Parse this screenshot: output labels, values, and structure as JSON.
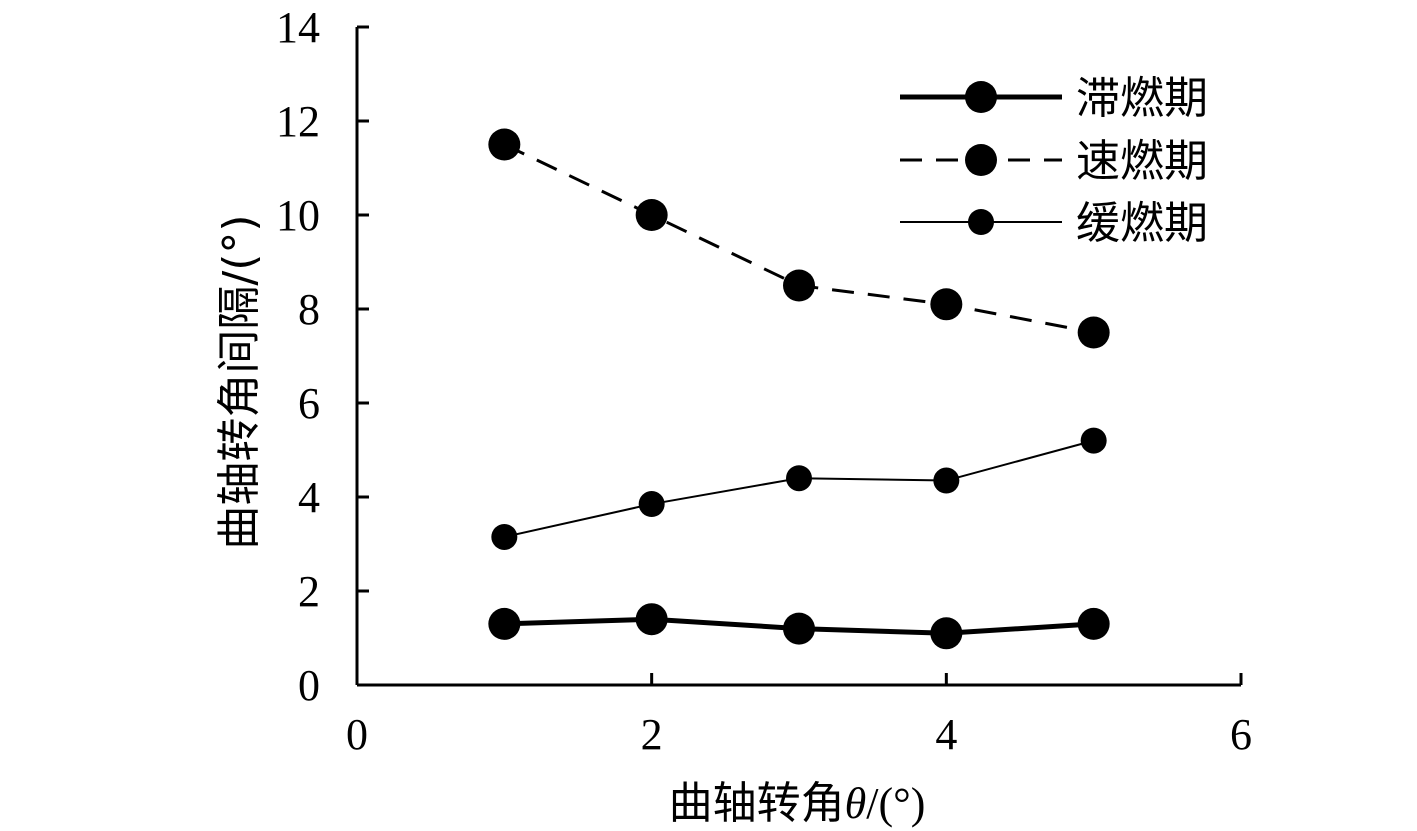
{
  "chart_data": {
    "type": "line",
    "xlabel_text": "曲轴转角",
    "xlabel_symbol": "θ",
    "xlabel_unit": "/(°)",
    "ylabel": "曲轴转角间隔/(°)",
    "xlim": [
      0,
      6
    ],
    "ylim": [
      0,
      14
    ],
    "x_ticks": [
      "0",
      "2",
      "4",
      "6"
    ],
    "y_ticks": [
      "0",
      "2",
      "4",
      "6",
      "8",
      "10",
      "12",
      "14"
    ],
    "x": [
      1,
      2,
      3,
      4,
      5
    ],
    "series": [
      {
        "name": "滞燃期",
        "values": [
          1.3,
          1.4,
          1.2,
          1.1,
          1.3
        ],
        "line_style": "solid-thick",
        "color": "#000000"
      },
      {
        "name": "速燃期",
        "values": [
          11.5,
          10.0,
          8.5,
          8.1,
          7.5
        ],
        "line_style": "dashed",
        "color": "#000000"
      },
      {
        "name": "缓燃期",
        "values": [
          3.15,
          3.85,
          4.4,
          4.35,
          5.2
        ],
        "line_style": "solid-thin",
        "color": "#000000"
      }
    ],
    "grid": false,
    "legend_position": "top-right"
  }
}
